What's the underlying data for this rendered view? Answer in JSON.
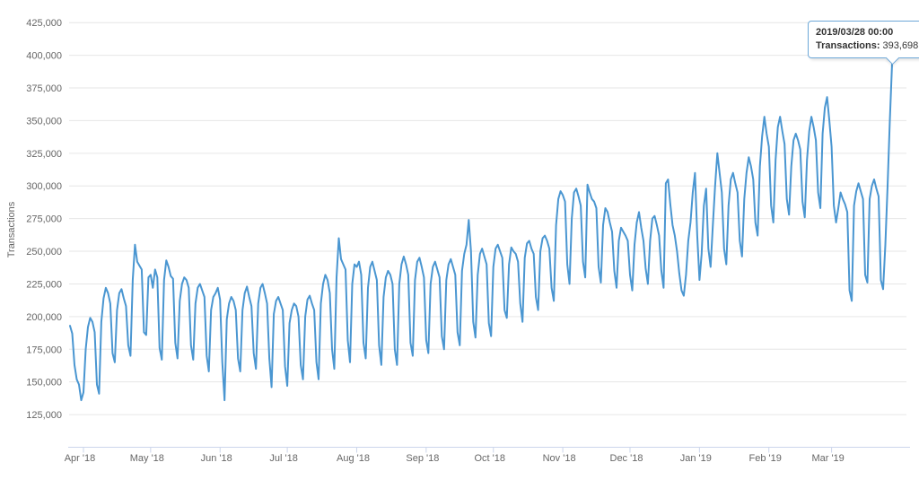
{
  "tooltip": {
    "date": "2019/03/28 00:00",
    "series_label": "Transactions:",
    "value": "393,698"
  },
  "chart_data": {
    "type": "line",
    "title": "",
    "xlabel": "",
    "ylabel": "Transactions",
    "series_name": "Transactions",
    "color": "#4a96d1",
    "grid_color": "#e6e6e6",
    "axis_color": "#ccd6eb",
    "label_color": "#666666",
    "legend": "none",
    "grid": "horizontal",
    "start_date": "2018-03-26",
    "end_date": "2019-03-28",
    "ylim": [
      100000,
      437500
    ],
    "y_ticks": [
      {
        "label": "125,000",
        "value": 125000
      },
      {
        "label": "150,000",
        "value": 150000
      },
      {
        "label": "175,000",
        "value": 175000
      },
      {
        "label": "200,000",
        "value": 200000
      },
      {
        "label": "225,000",
        "value": 225000
      },
      {
        "label": "250,000",
        "value": 250000
      },
      {
        "label": "275,000",
        "value": 275000
      },
      {
        "label": "300,000",
        "value": 300000
      },
      {
        "label": "325,000",
        "value": 325000
      },
      {
        "label": "350,000",
        "value": 350000
      },
      {
        "label": "375,000",
        "value": 375000
      },
      {
        "label": "400,000",
        "value": 400000
      },
      {
        "label": "425,000",
        "value": 425000
      }
    ],
    "x_ticks": [
      {
        "label": "Apr '18",
        "day": 6
      },
      {
        "label": "May '18",
        "day": 36
      },
      {
        "label": "Jun '18",
        "day": 67
      },
      {
        "label": "Jul '18",
        "day": 97
      },
      {
        "label": "Aug '18",
        "day": 128
      },
      {
        "label": "Sep '18",
        "day": 159
      },
      {
        "label": "Oct '18",
        "day": 189
      },
      {
        "label": "Nov '18",
        "day": 220
      },
      {
        "label": "Dec '18",
        "day": 250
      },
      {
        "label": "Jan '19",
        "day": 281
      },
      {
        "label": "Feb '19",
        "day": 312
      },
      {
        "label": "Mar '19",
        "day": 340
      }
    ],
    "last_point": {
      "date": "2019/03/28",
      "value": 393698
    },
    "values": [
      193000,
      187000,
      163000,
      152000,
      148000,
      136000,
      142000,
      175000,
      192000,
      199000,
      196000,
      188000,
      148000,
      141000,
      196000,
      214000,
      222000,
      218000,
      210000,
      172000,
      165000,
      205000,
      218000,
      221000,
      214000,
      208000,
      178000,
      170000,
      228000,
      255000,
      242000,
      239000,
      236000,
      188000,
      186000,
      230000,
      232000,
      222000,
      236000,
      230000,
      176000,
      167000,
      228000,
      243000,
      238000,
      231000,
      229000,
      180000,
      168000,
      212000,
      225000,
      230000,
      228000,
      222000,
      178000,
      167000,
      210000,
      222000,
      225000,
      220000,
      215000,
      170000,
      158000,
      205000,
      215000,
      218000,
      222000,
      213000,
      165000,
      136000,
      198000,
      210000,
      215000,
      212000,
      205000,
      168000,
      158000,
      205000,
      218000,
      223000,
      215000,
      208000,
      172000,
      160000,
      210000,
      222000,
      225000,
      218000,
      210000,
      168000,
      146000,
      202000,
      212000,
      215000,
      210000,
      205000,
      162000,
      147000,
      195000,
      205000,
      210000,
      208000,
      200000,
      163000,
      152000,
      200000,
      213000,
      216000,
      210000,
      205000,
      165000,
      152000,
      210000,
      225000,
      232000,
      228000,
      218000,
      175000,
      160000,
      230000,
      260000,
      244000,
      240000,
      236000,
      182000,
      165000,
      225000,
      240000,
      238000,
      242000,
      232000,
      180000,
      168000,
      222000,
      238000,
      242000,
      235000,
      228000,
      178000,
      163000,
      215000,
      230000,
      235000,
      232000,
      225000,
      175000,
      163000,
      225000,
      240000,
      246000,
      240000,
      232000,
      180000,
      170000,
      228000,
      242000,
      245000,
      238000,
      230000,
      182000,
      172000,
      225000,
      238000,
      242000,
      236000,
      230000,
      185000,
      175000,
      228000,
      240000,
      244000,
      238000,
      232000,
      188000,
      178000,
      235000,
      248000,
      255000,
      274000,
      250000,
      196000,
      184000,
      232000,
      248000,
      252000,
      246000,
      240000,
      195000,
      185000,
      238000,
      252000,
      255000,
      250000,
      245000,
      205000,
      199000,
      240000,
      253000,
      250000,
      248000,
      242000,
      210000,
      196000,
      245000,
      256000,
      258000,
      252000,
      248000,
      215000,
      205000,
      250000,
      260000,
      262000,
      258000,
      252000,
      222000,
      212000,
      270000,
      290000,
      296000,
      293000,
      288000,
      240000,
      225000,
      275000,
      295000,
      298000,
      292000,
      285000,
      242000,
      230000,
      301000,
      295000,
      290000,
      288000,
      283000,
      238000,
      226000,
      270000,
      283000,
      280000,
      272000,
      265000,
      235000,
      222000,
      258000,
      268000,
      265000,
      262000,
      258000,
      232000,
      220000,
      255000,
      272000,
      280000,
      268000,
      258000,
      237000,
      225000,
      258000,
      275000,
      277000,
      270000,
      262000,
      235000,
      222000,
      302000,
      305000,
      286000,
      270000,
      262000,
      250000,
      233000,
      220000,
      216000,
      232000,
      258000,
      272000,
      295000,
      310000,
      262000,
      228000,
      248000,
      285000,
      298000,
      252000,
      238000,
      270000,
      300000,
      325000,
      310000,
      295000,
      252000,
      240000,
      285000,
      305000,
      310000,
      302000,
      295000,
      258000,
      246000,
      290000,
      310000,
      322000,
      315000,
      305000,
      272000,
      262000,
      315000,
      338000,
      353000,
      340000,
      330000,
      285000,
      272000,
      320000,
      345000,
      353000,
      342000,
      332000,
      290000,
      278000,
      315000,
      335000,
      340000,
      335000,
      328000,
      288000,
      276000,
      320000,
      342000,
      353000,
      345000,
      335000,
      295000,
      283000,
      340000,
      360000,
      368000,
      350000,
      330000,
      285000,
      272000,
      283000,
      295000,
      290000,
      286000,
      280000,
      220000,
      212000,
      285000,
      296000,
      302000,
      296000,
      290000,
      232000,
      226000,
      290000,
      300000,
      305000,
      298000,
      292000,
      228000,
      221000,
      255000,
      300000,
      350000,
      393698
    ]
  }
}
